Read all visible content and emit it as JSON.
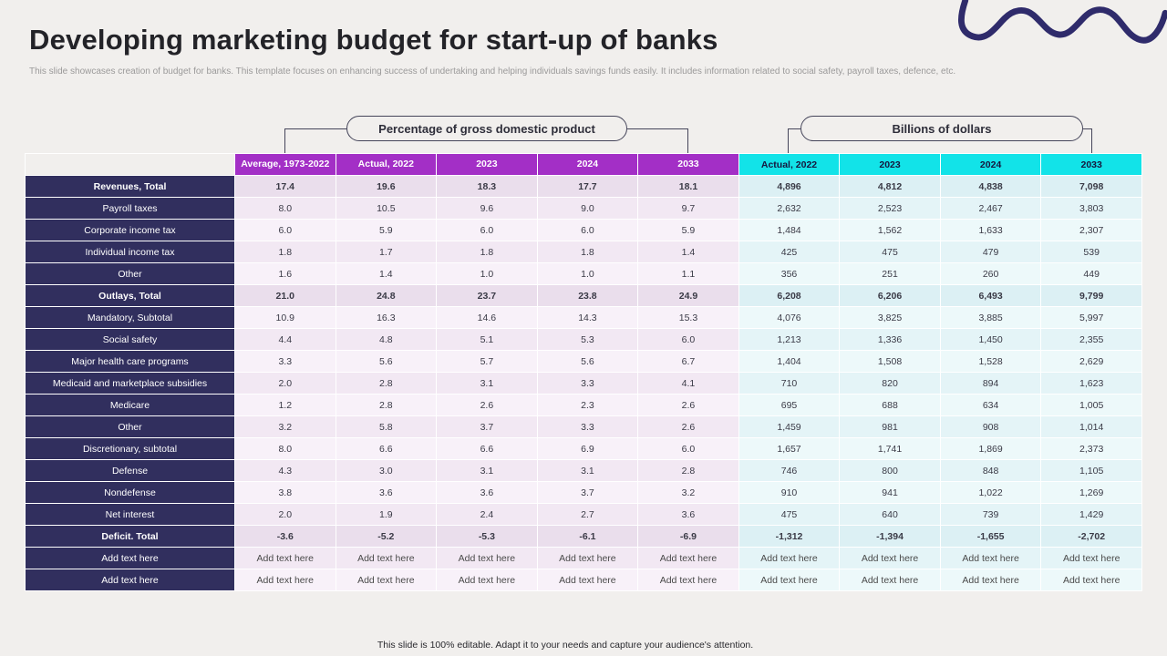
{
  "slide": {
    "title": "Developing marketing budget for start-up of banks",
    "subtitle": "This slide showcases creation of budget for banks. This template focuses on enhancing success of undertaking and helping individuals savings funds easily. It includes information related to social safety, payroll taxes, defence, etc.",
    "footer": "This slide is 100% editable. Adapt it to your needs and capture your audience's attention."
  },
  "groups": {
    "pct": "Percentage of gross domestic product",
    "usd": "Billions of dollars"
  },
  "table": {
    "pct_headers": [
      "Average, 1973-2022",
      "Actual, 2022",
      "2023",
      "2024",
      "2033"
    ],
    "usd_headers": [
      "Actual, 2022",
      "2023",
      "2024",
      "2033"
    ],
    "rows": [
      {
        "label": "Revenues, Total",
        "bold": true,
        "pct": [
          "17.4",
          "19.6",
          "18.3",
          "17.7",
          "18.1"
        ],
        "usd": [
          "4,896",
          "4,812",
          "4,838",
          "7,098"
        ]
      },
      {
        "label": "Payroll taxes",
        "pct": [
          "8.0",
          "10.5",
          "9.6",
          "9.0",
          "9.7"
        ],
        "usd": [
          "2,632",
          "2,523",
          "2,467",
          "3,803"
        ]
      },
      {
        "label": "Corporate income tax",
        "pct": [
          "6.0",
          "5.9",
          "6.0",
          "6.0",
          "5.9"
        ],
        "usd": [
          "1,484",
          "1,562",
          "1,633",
          "2,307"
        ]
      },
      {
        "label": "Individual income tax",
        "pct": [
          "1.8",
          "1.7",
          "1.8",
          "1.8",
          "1.4"
        ],
        "usd": [
          "425",
          "475",
          "479",
          "539"
        ]
      },
      {
        "label": "Other",
        "pct": [
          "1.6",
          "1.4",
          "1.0",
          "1.0",
          "1.1"
        ],
        "usd": [
          "356",
          "251",
          "260",
          "449"
        ]
      },
      {
        "label": "Outlays, Total",
        "bold": true,
        "pct": [
          "21.0",
          "24.8",
          "23.7",
          "23.8",
          "24.9"
        ],
        "usd": [
          "6,208",
          "6,206",
          "6,493",
          "9,799"
        ]
      },
      {
        "label": "Mandatory, Subtotal",
        "pct": [
          "10.9",
          "16.3",
          "14.6",
          "14.3",
          "15.3"
        ],
        "usd": [
          "4,076",
          "3,825",
          "3,885",
          "5,997"
        ]
      },
      {
        "label": "Social safety",
        "pct": [
          "4.4",
          "4.8",
          "5.1",
          "5.3",
          "6.0"
        ],
        "usd": [
          "1,213",
          "1,336",
          "1,450",
          "2,355"
        ]
      },
      {
        "label": "Major health care programs",
        "pct": [
          "3.3",
          "5.6",
          "5.7",
          "5.6",
          "6.7"
        ],
        "usd": [
          "1,404",
          "1,508",
          "1,528",
          "2,629"
        ]
      },
      {
        "label": "Medicaid and marketplace subsidies",
        "pct": [
          "2.0",
          "2.8",
          "3.1",
          "3.3",
          "4.1"
        ],
        "usd": [
          "710",
          "820",
          "894",
          "1,623"
        ]
      },
      {
        "label": "Medicare",
        "pct": [
          "1.2",
          "2.8",
          "2.6",
          "2.3",
          "2.6"
        ],
        "usd": [
          "695",
          "688",
          "634",
          "1,005"
        ]
      },
      {
        "label": "Other",
        "pct": [
          "3.2",
          "5.8",
          "3.7",
          "3.3",
          "2.6"
        ],
        "usd": [
          "1,459",
          "981",
          "908",
          "1,014"
        ]
      },
      {
        "label": "Discretionary, subtotal",
        "pct": [
          "8.0",
          "6.6",
          "6.6",
          "6.9",
          "6.0"
        ],
        "usd": [
          "1,657",
          "1,741",
          "1,869",
          "2,373"
        ]
      },
      {
        "label": "Defense",
        "pct": [
          "4.3",
          "3.0",
          "3.1",
          "3.1",
          "2.8"
        ],
        "usd": [
          "746",
          "800",
          "848",
          "1,105"
        ]
      },
      {
        "label": "Nondefense",
        "pct": [
          "3.8",
          "3.6",
          "3.6",
          "3.7",
          "3.2"
        ],
        "usd": [
          "910",
          "941",
          "1,022",
          "1,269"
        ]
      },
      {
        "label": "Net interest",
        "pct": [
          "2.0",
          "1.9",
          "2.4",
          "2.7",
          "3.6"
        ],
        "usd": [
          "475",
          "640",
          "739",
          "1,429"
        ]
      },
      {
        "label": "Deficit. Total",
        "bold": true,
        "pct": [
          "-3.6",
          "-5.2",
          "-5.3",
          "-6.1",
          "-6.9"
        ],
        "usd": [
          "-1,312",
          "-1,394",
          "-1,655",
          "-2,702"
        ]
      },
      {
        "label": "Add text here",
        "placeholder": true,
        "pct": [
          "Add text here",
          "Add text here",
          "Add text here",
          "Add text here",
          "Add text here"
        ],
        "usd": [
          "Add text here",
          "Add text here",
          "Add text here",
          "Add text here"
        ]
      },
      {
        "label": "Add text here",
        "placeholder": true,
        "pct": [
          "Add text here",
          "Add text here",
          "Add text here",
          "Add text here",
          "Add text here"
        ],
        "usd": [
          "Add text here",
          "Add text here",
          "Add text here",
          "Add text here"
        ]
      }
    ]
  },
  "colors": {
    "bg": "#F1EFED",
    "purple": "#A32FC6",
    "cyan": "#12E3E8",
    "navy": "#312F5E",
    "squiggle": "#2F2B6B"
  }
}
